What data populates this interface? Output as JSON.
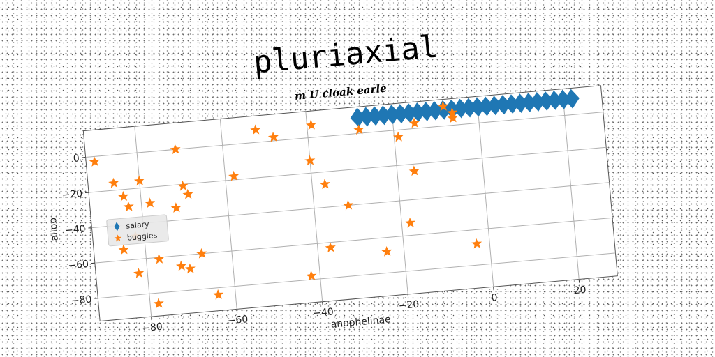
{
  "chart_data": {
    "type": "scatter",
    "title": "pluriaxial",
    "subtitle": "m U cloak earle",
    "xlabel": "anophelinae",
    "ylabel": "alloo",
    "xlim": [
      -92,
      29
    ],
    "ylim": [
      -93,
      15
    ],
    "xticks": [
      -80,
      -60,
      -40,
      -20,
      0,
      20
    ],
    "yticks": [
      0,
      -20,
      -40,
      -60,
      -80
    ],
    "grid": true,
    "legend_position": "center-left",
    "series": [
      {
        "name": "salary",
        "marker": "diamond",
        "color": "#1f77b4",
        "x": [
          -28,
          -26,
          -24,
          -22,
          -20,
          -18,
          -16,
          -14,
          -12,
          -10,
          -8,
          -6,
          -4,
          -2,
          0,
          2,
          4,
          6,
          8,
          10,
          12,
          14,
          16,
          18,
          20,
          22
        ],
        "y": [
          9,
          9,
          9,
          9,
          9,
          9,
          9,
          9,
          9,
          9,
          9,
          9,
          9,
          9,
          9,
          9,
          9,
          9,
          9,
          9,
          9,
          9,
          9,
          9,
          9,
          9
        ]
      },
      {
        "name": "buggies",
        "marker": "star",
        "color": "#ff7f0e",
        "x": [
          -90,
          -86,
          -84,
          -83,
          -82,
          -85,
          -82,
          -80,
          -78,
          -72,
          -71,
          -70,
          -69,
          -70,
          -72,
          -77,
          -78,
          -67,
          -64,
          -58,
          -52,
          -48,
          -42,
          -40,
          -39,
          -37,
          -37,
          -32,
          -28,
          -24,
          -19,
          -18,
          -16,
          -15,
          -8,
          -6,
          -6,
          -3
        ],
        "y": [
          -3,
          -16,
          -24,
          -30,
          -47,
          -54,
          -68,
          -16,
          -29,
          -33,
          0,
          -21,
          -26,
          -68,
          -66,
          -61,
          -86,
          -60,
          -84,
          -18,
          7,
          2,
          -78,
          -13,
          7,
          -27,
          -63,
          -40,
          2,
          -68,
          -4,
          -53,
          -24,
          3,
          11,
          7,
          4,
          -68
        ]
      }
    ]
  }
}
